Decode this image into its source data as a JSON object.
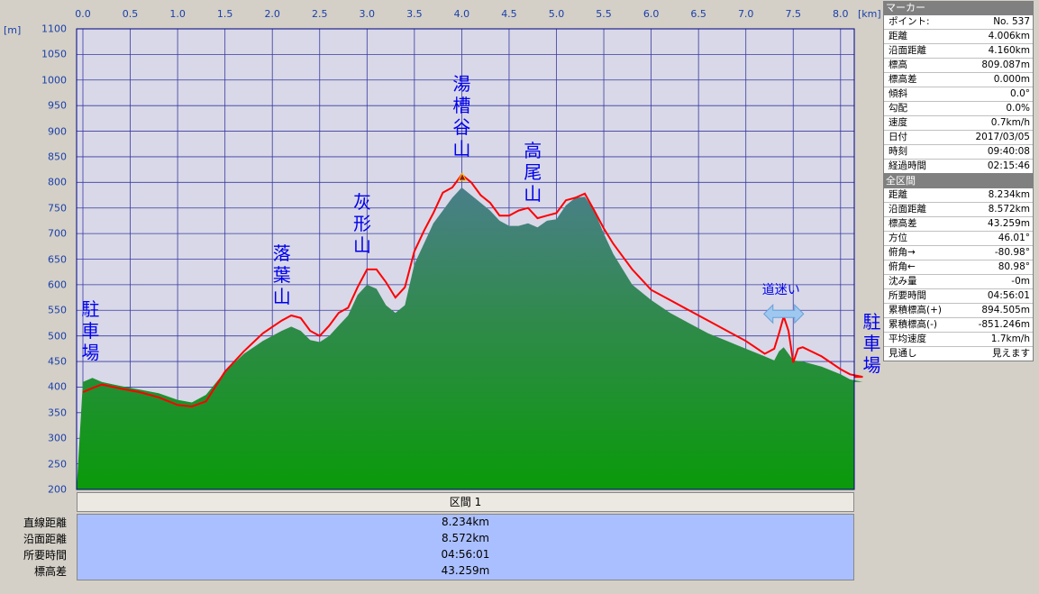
{
  "chart_data": {
    "type": "area",
    "x_unit": "[km]",
    "y_unit": "[m]",
    "xlim": [
      0,
      8.234
    ],
    "ylim": [
      200,
      1100
    ],
    "x_ticks": [
      "0.0",
      "0.5",
      "1.0",
      "1.5",
      "2.0",
      "2.5",
      "3.0",
      "3.5",
      "4.0",
      "4.5",
      "5.0",
      "5.5",
      "6.0",
      "6.5",
      "7.0",
      "7.5",
      "8.0"
    ],
    "y_ticks": [
      "1100",
      "1050",
      "1000",
      "950",
      "900",
      "850",
      "800",
      "750",
      "700",
      "650",
      "600",
      "550",
      "500",
      "450",
      "400",
      "350",
      "300",
      "250",
      "200"
    ],
    "series": [
      {
        "type": "area",
        "x": [
          0,
          0.1,
          0.2,
          0.4,
          0.6,
          0.8,
          1.0,
          1.15,
          1.3,
          1.5,
          1.7,
          1.9,
          2.1,
          2.2,
          2.3,
          2.4,
          2.5,
          2.6,
          2.7,
          2.8,
          2.9,
          3.0,
          3.1,
          3.2,
          3.3,
          3.4,
          3.5,
          3.6,
          3.7,
          3.8,
          3.9,
          4.0,
          4.1,
          4.2,
          4.3,
          4.4,
          4.5,
          4.6,
          4.7,
          4.8,
          4.9,
          5.0,
          5.1,
          5.2,
          5.3,
          5.4,
          5.5,
          5.6,
          5.7,
          5.8,
          5.9,
          6.0,
          6.2,
          6.4,
          6.6,
          6.8,
          7.0,
          7.2,
          7.3,
          7.35,
          7.4,
          7.45,
          7.5,
          7.6,
          7.8,
          8.0,
          8.1,
          8.234
        ],
        "y": [
          410,
          418,
          410,
          402,
          395,
          388,
          375,
          370,
          385,
          430,
          465,
          490,
          510,
          518,
          510,
          492,
          488,
          500,
          520,
          540,
          580,
          600,
          592,
          560,
          545,
          560,
          640,
          680,
          720,
          745,
          770,
          790,
          775,
          760,
          745,
          725,
          715,
          715,
          720,
          712,
          725,
          728,
          755,
          770,
          772,
          745,
          700,
          660,
          630,
          600,
          585,
          570,
          545,
          525,
          505,
          490,
          475,
          460,
          452,
          470,
          478,
          465,
          452,
          450,
          440,
          425,
          415,
          410
        ]
      },
      {
        "type": "line",
        "x": [
          0,
          0.1,
          0.2,
          0.4,
          0.6,
          0.8,
          1.0,
          1.15,
          1.3,
          1.5,
          1.7,
          1.9,
          2.1,
          2.2,
          2.3,
          2.4,
          2.5,
          2.6,
          2.7,
          2.8,
          2.9,
          3.0,
          3.1,
          3.2,
          3.3,
          3.4,
          3.5,
          3.6,
          3.7,
          3.8,
          3.9,
          4.0,
          4.1,
          4.2,
          4.3,
          4.4,
          4.5,
          4.6,
          4.7,
          4.8,
          4.9,
          5.0,
          5.1,
          5.2,
          5.3,
          5.4,
          5.5,
          5.6,
          5.7,
          5.8,
          5.9,
          6.0,
          6.2,
          6.4,
          6.6,
          6.8,
          7.0,
          7.2,
          7.3,
          7.35,
          7.4,
          7.45,
          7.5,
          7.55,
          7.6,
          7.8,
          8.0,
          8.1,
          8.234
        ],
        "y": [
          390,
          398,
          405,
          397,
          390,
          380,
          365,
          362,
          372,
          430,
          470,
          505,
          530,
          540,
          535,
          510,
          500,
          520,
          545,
          555,
          595,
          630,
          630,
          605,
          575,
          595,
          665,
          705,
          740,
          780,
          790,
          815,
          800,
          775,
          760,
          735,
          735,
          745,
          750,
          730,
          735,
          740,
          765,
          770,
          778,
          745,
          710,
          680,
          655,
          630,
          610,
          590,
          570,
          550,
          530,
          510,
          490,
          465,
          475,
          505,
          538,
          510,
          448,
          475,
          478,
          460,
          435,
          425,
          420
        ]
      }
    ],
    "annotations": [
      {
        "text": "駐車場",
        "x": 0.08,
        "y": 510
      },
      {
        "text": "落葉山",
        "x": 2.1,
        "y": 620
      },
      {
        "text": "灰形山",
        "x": 2.95,
        "y": 720
      },
      {
        "text": "湯槽谷山",
        "x": 4.0,
        "y": 930
      },
      {
        "text": "高尾山",
        "x": 4.75,
        "y": 820
      },
      {
        "text": "道迷い",
        "x": 7.4,
        "y": 592
      },
      {
        "text": "駐車場",
        "x": 8.33,
        "y": 485
      }
    ]
  },
  "marker_panel": {
    "title": "マーカー",
    "rows": [
      {
        "k": "ポイント:",
        "v": "No. 537"
      },
      {
        "k": "距離",
        "v": "4.006km"
      },
      {
        "k": "沿面距離",
        "v": "4.160km"
      },
      {
        "k": "標高",
        "v": "809.087m"
      },
      {
        "k": "標高差",
        "v": "0.000m"
      },
      {
        "k": "傾斜",
        "v": "0.0°"
      },
      {
        "k": "勾配",
        "v": "0.0%"
      },
      {
        "k": "速度",
        "v": "0.7km/h"
      },
      {
        "k": "日付",
        "v": "2017/03/05"
      },
      {
        "k": "時刻",
        "v": "09:40:08"
      },
      {
        "k": "経過時間",
        "v": "02:15:46"
      }
    ]
  },
  "total_panel": {
    "title": "全区間",
    "rows": [
      {
        "k": "距離",
        "v": "8.234km"
      },
      {
        "k": "沿面距離",
        "v": "8.572km"
      },
      {
        "k": "標高差",
        "v": "43.259m"
      },
      {
        "k": "方位",
        "v": "46.01°"
      },
      {
        "k": "俯角→",
        "v": "-80.98°"
      },
      {
        "k": "俯角←",
        "v": "80.98°"
      },
      {
        "k": "沈み量",
        "v": "-0m"
      },
      {
        "k": "所要時間",
        "v": "04:56:01"
      },
      {
        "k": "累積標高(+)",
        "v": "894.505m"
      },
      {
        "k": "累積標高(-)",
        "v": "-851.246m"
      },
      {
        "k": "平均速度",
        "v": "1.7km/h"
      },
      {
        "k": "見通し",
        "v": "見えます"
      }
    ]
  },
  "summary": {
    "section_label": "区間 1",
    "labels": [
      "直線距離",
      "沿面距離",
      "所要時間",
      "標高差"
    ],
    "values": [
      "8.234km",
      "8.572km",
      "04:56:01",
      "43.259m"
    ]
  },
  "colors": {
    "plot_bg": "#d8d8e8",
    "grid": "#3a3aa0",
    "profile_line": "#ff0000",
    "area_top": "#4a8a8a",
    "area_bottom": "#0a9a0a",
    "annotation": "#0000ee"
  }
}
